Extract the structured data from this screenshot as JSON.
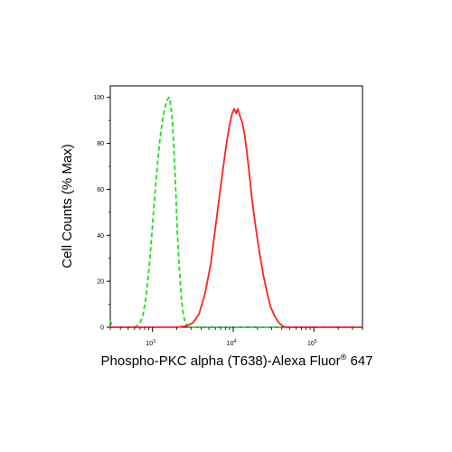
{
  "chart_data": {
    "type": "line",
    "xlabel_main": "Phospho-PKC alpha (T638)-Alexa Fluor",
    "xlabel_sup": "®",
    "xlabel_tail": " 647",
    "ylabel": "Cell Counts (% Max)",
    "x_scale": "log",
    "xlim": [
      300,
      400000
    ],
    "ylim": [
      0,
      105
    ],
    "x_ticks": [
      {
        "value": 1000,
        "base": "10",
        "exp": "3"
      },
      {
        "value": 10000,
        "base": "10",
        "exp": "4"
      },
      {
        "value": 100000,
        "base": "10",
        "exp": "5"
      }
    ],
    "y_ticks": [
      {
        "value": 0,
        "label": "0"
      },
      {
        "value": 20,
        "label": "20"
      },
      {
        "value": 40,
        "label": "40"
      },
      {
        "value": 60,
        "label": "60"
      },
      {
        "value": 80,
        "label": "80"
      },
      {
        "value": 100,
        "label": "100"
      }
    ],
    "grid": false,
    "series": [
      {
        "color": "#22dd22",
        "dash": true,
        "points": [
          [
            300,
            3
          ],
          [
            320,
            0
          ],
          [
            400,
            0
          ],
          [
            550,
            0
          ],
          [
            640,
            0.5
          ],
          [
            700,
            2
          ],
          [
            760,
            5
          ],
          [
            840,
            14
          ],
          [
            930,
            30
          ],
          [
            1030,
            50
          ],
          [
            1120,
            66
          ],
          [
            1220,
            80
          ],
          [
            1330,
            90
          ],
          [
            1440,
            96
          ],
          [
            1530,
            99
          ],
          [
            1600,
            100
          ],
          [
            1660,
            98
          ],
          [
            1740,
            92
          ],
          [
            1830,
            80
          ],
          [
            1930,
            62
          ],
          [
            2030,
            42
          ],
          [
            2150,
            25
          ],
          [
            2290,
            12
          ],
          [
            2420,
            5
          ],
          [
            2580,
            1.5
          ],
          [
            2800,
            0
          ],
          [
            400000,
            0
          ]
        ]
      },
      {
        "color": "#ff2222",
        "dash": false,
        "points": [
          [
            300,
            0
          ],
          [
            2000,
            0
          ],
          [
            2600,
            0.5
          ],
          [
            3200,
            2
          ],
          [
            3800,
            6
          ],
          [
            4500,
            15
          ],
          [
            5300,
            28
          ],
          [
            6100,
            45
          ],
          [
            7100,
            63
          ],
          [
            8100,
            78
          ],
          [
            9000,
            88
          ],
          [
            9700,
            93
          ],
          [
            10300,
            95
          ],
          [
            10900,
            93
          ],
          [
            11400,
            95
          ],
          [
            12100,
            92
          ],
          [
            13000,
            89
          ],
          [
            13800,
            84
          ],
          [
            14700,
            77
          ],
          [
            15700,
            68
          ],
          [
            16900,
            57
          ],
          [
            18600,
            46
          ],
          [
            20200,
            37
          ],
          [
            22000,
            29
          ],
          [
            23800,
            22
          ],
          [
            26300,
            15
          ],
          [
            29000,
            9
          ],
          [
            32500,
            5
          ],
          [
            36600,
            2
          ],
          [
            41000,
            0.5
          ],
          [
            46000,
            0
          ],
          [
            400000,
            0
          ]
        ]
      }
    ]
  }
}
